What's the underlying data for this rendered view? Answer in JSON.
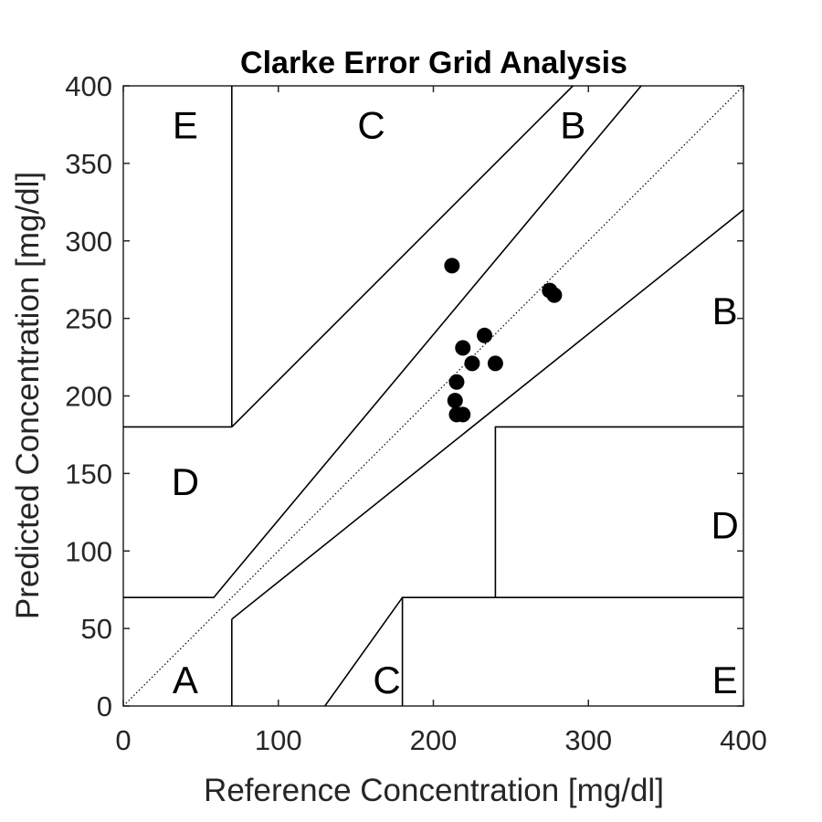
{
  "chart_data": {
    "type": "scatter",
    "title": "Clarke Error Grid Analysis",
    "xlabel": "Reference Concentration [mg/dl]",
    "ylabel": "Predicted Concentration [mg/dl]",
    "xlim": [
      0,
      400
    ],
    "ylim": [
      0,
      400
    ],
    "xticks": [
      0,
      100,
      200,
      300,
      400
    ],
    "yticks": [
      0,
      50,
      100,
      150,
      200,
      250,
      300,
      350,
      400
    ],
    "grid": false,
    "marker_color": "#000000",
    "points": [
      {
        "x": 212,
        "y": 284
      },
      {
        "x": 233,
        "y": 239
      },
      {
        "x": 219,
        "y": 231
      },
      {
        "x": 225,
        "y": 221
      },
      {
        "x": 240,
        "y": 221
      },
      {
        "x": 215,
        "y": 209
      },
      {
        "x": 214,
        "y": 197
      },
      {
        "x": 215,
        "y": 188
      },
      {
        "x": 219,
        "y": 188
      },
      {
        "x": 275,
        "y": 268
      },
      {
        "x": 278,
        "y": 265
      }
    ],
    "zone_lines": [
      {
        "name": "identity-line",
        "style": "dotted",
        "points": [
          [
            0,
            0
          ],
          [
            400,
            400
          ]
        ]
      },
      {
        "name": "e-upper-left-vertical",
        "style": "solid",
        "points": [
          [
            70,
            400
          ],
          [
            70,
            180
          ]
        ]
      },
      {
        "name": "d-upper-left-horizontal",
        "style": "solid",
        "points": [
          [
            0,
            180
          ],
          [
            70,
            180
          ]
        ]
      },
      {
        "name": "c-upper-boundary",
        "style": "solid",
        "points": [
          [
            70,
            180
          ],
          [
            290,
            400
          ]
        ]
      },
      {
        "name": "b-upper-boundary",
        "style": "solid",
        "points": [
          [
            70,
            84
          ],
          [
            334,
            400
          ]
        ]
      },
      {
        "name": "a-upper-horizontal",
        "style": "solid",
        "points": [
          [
            0,
            70
          ],
          [
            58.3,
            70
          ],
          [
            70,
            84
          ]
        ]
      },
      {
        "name": "b-lower-boundary",
        "style": "solid",
        "points": [
          [
            70,
            56
          ],
          [
            400,
            320
          ]
        ]
      },
      {
        "name": "a-lower-vertical",
        "style": "solid",
        "points": [
          [
            70,
            0
          ],
          [
            70,
            56
          ]
        ]
      },
      {
        "name": "c-lower-boundary",
        "style": "solid",
        "points": [
          [
            130,
            0
          ],
          [
            180,
            70
          ]
        ]
      },
      {
        "name": "e-lower-right-box",
        "style": "solid",
        "points": [
          [
            180,
            0
          ],
          [
            180,
            70
          ],
          [
            400,
            70
          ]
        ]
      },
      {
        "name": "d-lower-right-box",
        "style": "solid",
        "points": [
          [
            240,
            70
          ],
          [
            240,
            180
          ],
          [
            400,
            180
          ]
        ]
      }
    ],
    "zone_labels": [
      {
        "text": "E",
        "x": 40,
        "y": 375
      },
      {
        "text": "C",
        "x": 160,
        "y": 375
      },
      {
        "text": "B",
        "x": 290,
        "y": 375
      },
      {
        "text": "B",
        "x": 388,
        "y": 255
      },
      {
        "text": "D",
        "x": 40,
        "y": 145
      },
      {
        "text": "D",
        "x": 388,
        "y": 117
      },
      {
        "text": "A",
        "x": 40,
        "y": 17
      },
      {
        "text": "C",
        "x": 170,
        "y": 17
      },
      {
        "text": "E",
        "x": 388,
        "y": 17
      }
    ]
  }
}
